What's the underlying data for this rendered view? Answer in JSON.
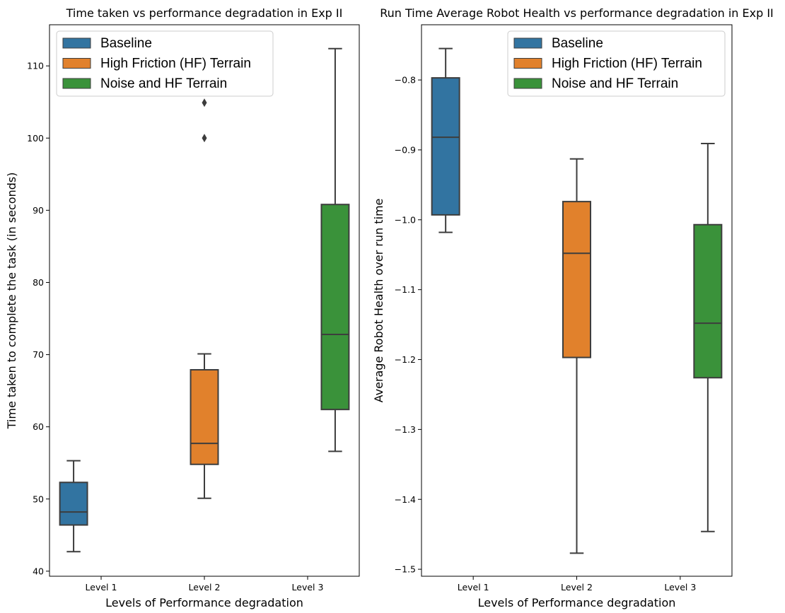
{
  "chart_data": [
    {
      "type": "box",
      "title": "Time taken vs performance degradation in Exp II",
      "xlabel": "Levels of Performance degradation",
      "ylabel": "Time taken to complete the task (in seconds)",
      "categories": [
        "Level 1",
        "Level 2",
        "Level 3"
      ],
      "ylim": [
        39.3,
        115.7
      ],
      "yticks": [
        40,
        50,
        60,
        70,
        80,
        90,
        100,
        110
      ],
      "legend_position": "top-left",
      "series": [
        {
          "name": "Baseline",
          "color": "#3274a1",
          "category": "Level 1",
          "whisker_low": 42.7,
          "q1": 46.4,
          "median": 48.2,
          "q3": 52.3,
          "whisker_high": 55.3,
          "outliers": []
        },
        {
          "name": "High Friction (HF) Terrain",
          "color": "#e1812c",
          "category": "Level 2",
          "whisker_low": 50.1,
          "q1": 54.8,
          "median": 57.7,
          "q3": 67.9,
          "whisker_high": 70.1,
          "outliers": [
            100.0,
            104.9
          ]
        },
        {
          "name": "Noise and HF Terrain",
          "color": "#3a923a",
          "category": "Level 3",
          "whisker_low": 56.6,
          "q1": 62.4,
          "median": 72.8,
          "q3": 90.8,
          "whisker_high": 112.4,
          "outliers": []
        }
      ]
    },
    {
      "type": "box",
      "title": "Run Time Average Robot Health vs performance degradation in Exp II",
      "xlabel": "Levels of Performance degradation",
      "ylabel": "Average Robot Health over run time",
      "categories": [
        "Level 1",
        "Level 2",
        "Level 3"
      ],
      "ylim": [
        -1.51,
        -0.721
      ],
      "yticks": [
        -1.5,
        -1.4,
        -1.3,
        -1.2,
        -1.1,
        -1.0,
        -0.9,
        -0.8
      ],
      "ytick_labels": [
        "−1.5",
        "−1.4",
        "−1.3",
        "−1.2",
        "−1.1",
        "−1.0",
        "−0.9",
        "−0.8"
      ],
      "legend_position": "top-right",
      "series": [
        {
          "name": "Baseline",
          "color": "#3274a1",
          "category": "Level 1",
          "whisker_low": -1.018,
          "q1": -0.993,
          "median": -0.882,
          "q3": -0.797,
          "whisker_high": -0.755,
          "outliers": []
        },
        {
          "name": "High Friction (HF) Terrain",
          "color": "#e1812c",
          "category": "Level 2",
          "whisker_low": -1.477,
          "q1": -1.197,
          "median": -1.048,
          "q3": -0.974,
          "whisker_high": -0.913,
          "outliers": []
        },
        {
          "name": "Noise and HF Terrain",
          "color": "#3a923a",
          "category": "Level 3",
          "whisker_low": -1.446,
          "q1": -1.226,
          "median": -1.148,
          "q3": -1.007,
          "whisker_high": -0.891,
          "outliers": []
        }
      ]
    }
  ]
}
